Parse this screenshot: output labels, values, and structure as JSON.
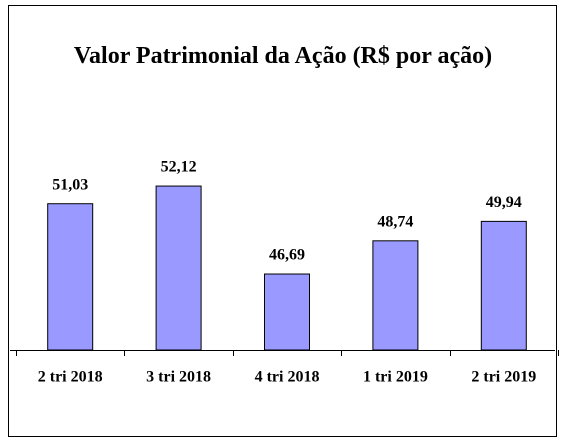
{
  "chart_data": {
    "type": "bar",
    "title": "Valor Patrimonial da Ação (R$ por ação)",
    "categories": [
      "2 tri 2018",
      "3 tri 2018",
      "4 tri 2018",
      "1 tri 2019",
      "2 tri 2019"
    ],
    "values": [
      51.03,
      52.12,
      46.69,
      48.74,
      49.94
    ],
    "value_labels": [
      "51,03",
      "52,12",
      "46,69",
      "48,74",
      "49,94"
    ],
    "color": "#9999ff",
    "ylim": [
      42,
      55
    ]
  }
}
